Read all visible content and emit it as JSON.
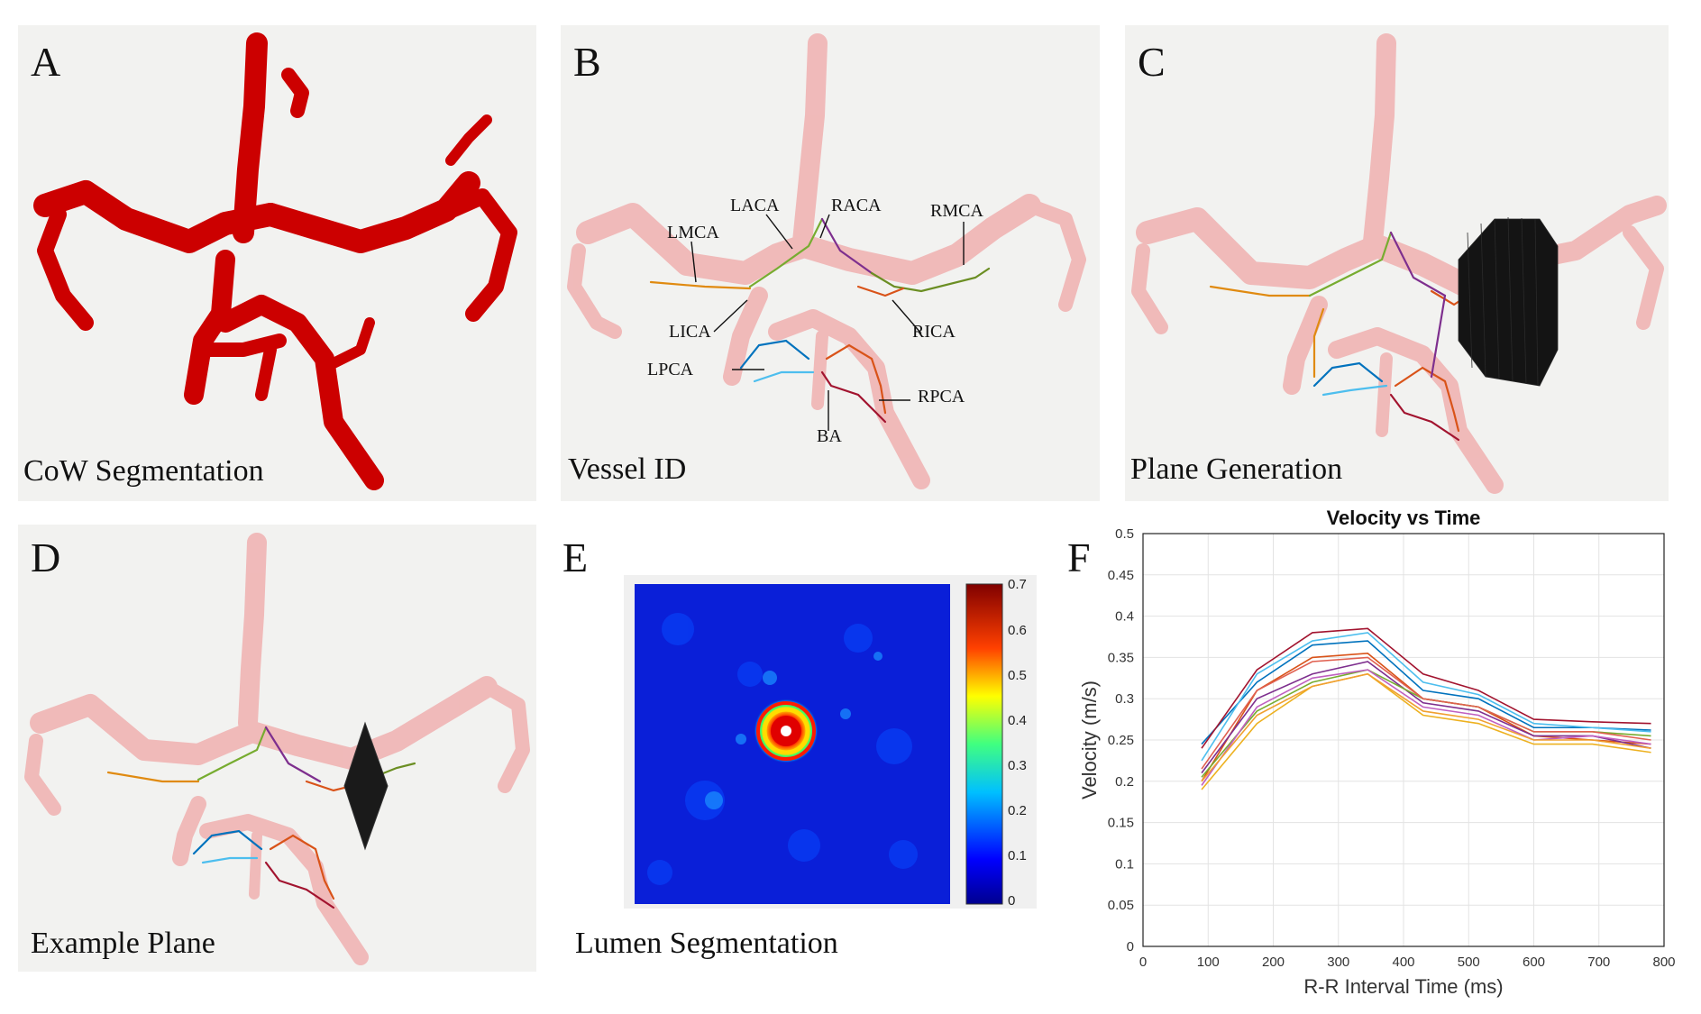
{
  "panels": {
    "A": {
      "letter": "A",
      "caption": "CoW Segmentation"
    },
    "B": {
      "letter": "B",
      "caption": "Vessel ID",
      "vessel_labels": [
        "LMCA",
        "LACA",
        "RACA",
        "RMCA",
        "LICA",
        "RICA",
        "LPCA",
        "RPCA",
        "BA"
      ]
    },
    "C": {
      "letter": "C",
      "caption": "Plane Generation"
    },
    "D": {
      "letter": "D",
      "caption": "Example Plane"
    },
    "E": {
      "letter": "E",
      "caption": "Lumen Segmentation",
      "colorbar_ticks": [
        "0.7",
        "0.6",
        "0.5",
        "0.4",
        "0.3",
        "0.2",
        "0.1",
        "0"
      ]
    },
    "F": {
      "letter": "F"
    }
  },
  "colors": {
    "vessel_red": "#cc0000",
    "vessel_pink": "#f0b4b4",
    "panel_bg": "#f2f2f0"
  },
  "chart_data": {
    "type": "line",
    "title": "Velocity vs Time",
    "xlabel": "R-R Interval Time (ms)",
    "ylabel": "Velocity (m/s)",
    "xlim": [
      0,
      800
    ],
    "ylim": [
      0,
      0.5
    ],
    "xticks": [
      0,
      100,
      200,
      300,
      400,
      500,
      600,
      700,
      800
    ],
    "yticks": [
      0,
      0.05,
      0.1,
      0.15,
      0.2,
      0.25,
      0.3,
      0.35,
      0.4,
      0.45,
      0.5
    ],
    "grid": true,
    "x": [
      90,
      175,
      260,
      345,
      430,
      515,
      600,
      690,
      780
    ],
    "series": [
      {
        "color": "#0072bd",
        "values": [
          0.245,
          0.32,
          0.365,
          0.37,
          0.31,
          0.3,
          0.265,
          0.265,
          0.262
        ]
      },
      {
        "color": "#d95319",
        "values": [
          0.2,
          0.31,
          0.35,
          0.355,
          0.3,
          0.29,
          0.255,
          0.25,
          0.245
        ]
      },
      {
        "color": "#edb120",
        "values": [
          0.19,
          0.27,
          0.315,
          0.33,
          0.28,
          0.27,
          0.245,
          0.245,
          0.235
        ]
      },
      {
        "color": "#7e2f8e",
        "values": [
          0.21,
          0.3,
          0.33,
          0.345,
          0.295,
          0.285,
          0.255,
          0.255,
          0.24
        ]
      },
      {
        "color": "#77ac30",
        "values": [
          0.205,
          0.285,
          0.32,
          0.335,
          0.3,
          0.29,
          0.26,
          0.26,
          0.255
        ]
      },
      {
        "color": "#4dbeee",
        "values": [
          0.225,
          0.33,
          0.37,
          0.38,
          0.32,
          0.305,
          0.27,
          0.265,
          0.26
        ]
      },
      {
        "color": "#a2142f",
        "values": [
          0.24,
          0.335,
          0.38,
          0.385,
          0.33,
          0.31,
          0.275,
          0.272,
          0.27
        ]
      },
      {
        "color": "#e06050",
        "values": [
          0.215,
          0.31,
          0.345,
          0.35,
          0.3,
          0.29,
          0.26,
          0.26,
          0.25
        ]
      },
      {
        "color": "#c060c0",
        "values": [
          0.195,
          0.29,
          0.325,
          0.335,
          0.29,
          0.28,
          0.25,
          0.255,
          0.245
        ]
      },
      {
        "color": "#f0a030",
        "values": [
          0.2,
          0.28,
          0.315,
          0.33,
          0.285,
          0.275,
          0.25,
          0.25,
          0.24
        ]
      }
    ]
  }
}
